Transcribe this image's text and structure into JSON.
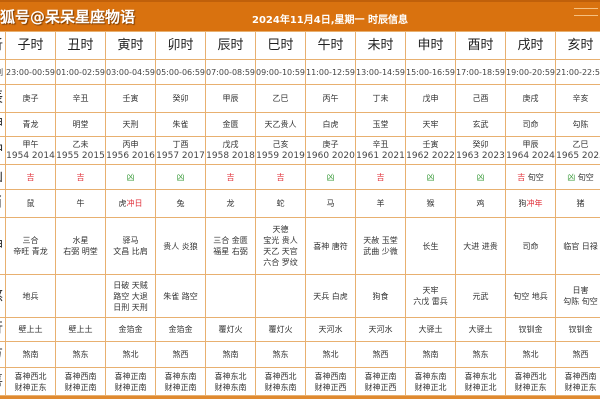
{
  "header": {
    "brand": "狐号@呆呆星座物语",
    "date_title": "2024年11月4日,星期一 时辰信息"
  },
  "colors": {
    "header_bg": "#d9720f",
    "ji": "#e0303a",
    "xiong": "#3a9a3a",
    "border": "#e8b070"
  },
  "row_labels": [
    "析",
    "刻",
    "辰",
    "神",
    "冲",
    "凶",
    "肖",
    "神",
    "煞",
    "行",
    "方",
    "喜"
  ],
  "columns": [
    {
      "name": "子时",
      "time": "23:00-00:59",
      "chen": "庚子",
      "shen": "青龙",
      "chong": [
        "甲午",
        "1954 2014"
      ],
      "luck": "吉",
      "luck_extra": "",
      "animal": "鼠",
      "animal_extra": "",
      "yi": [
        "三合",
        "帝旺 青龙"
      ],
      "sha": [
        "地兵"
      ],
      "wuxing": "壁上土",
      "fang": "煞南",
      "xi": [
        "喜神西北",
        "财神正东"
      ]
    },
    {
      "name": "丑时",
      "time": "01:00-02:59",
      "chen": "辛丑",
      "shen": "明堂",
      "chong": [
        "乙未",
        "1955 2015"
      ],
      "luck": "吉",
      "luck_extra": "",
      "animal": "牛",
      "animal_extra": "",
      "yi": [
        "水星",
        "右弼 明堂"
      ],
      "sha": [],
      "wuxing": "壁上土",
      "fang": "煞东",
      "xi": [
        "喜神西南",
        "财神正南"
      ]
    },
    {
      "name": "寅时",
      "time": "03:00-04:59",
      "chen": "壬寅",
      "shen": "天刑",
      "chong": [
        "丙申",
        "1956 2016"
      ],
      "luck": "凶",
      "luck_extra": "",
      "animal": "虎",
      "animal_extra": "冲日",
      "yi": [
        "驿马",
        "文昌 比肩"
      ],
      "sha": [
        "日破 天贼",
        "路空 大退",
        "日刑 天刑"
      ],
      "wuxing": "金箔金",
      "fang": "煞北",
      "xi": [
        "喜神正南",
        "财神正南"
      ]
    },
    {
      "name": "卯时",
      "time": "05:00-06:59",
      "chen": "癸卯",
      "shen": "朱雀",
      "chong": [
        "丁酉",
        "1957 2017"
      ],
      "luck": "凶",
      "luck_extra": "",
      "animal": "兔",
      "animal_extra": "",
      "yi": [
        "贵人 炎狼"
      ],
      "sha": [
        "朱雀 路空"
      ],
      "wuxing": "金箔金",
      "fang": "煞西",
      "xi": [
        "喜神东南",
        "财神正南"
      ]
    },
    {
      "name": "辰时",
      "time": "07:00-08:59",
      "chen": "甲辰",
      "shen": "金匮",
      "chong": [
        "戊戌",
        "1958 2018"
      ],
      "luck": "吉",
      "luck_extra": "",
      "animal": "龙",
      "animal_extra": "",
      "yi": [
        "三合 金匮",
        "福星 右弼"
      ],
      "sha": [],
      "wuxing": "覆灯火",
      "fang": "煞南",
      "xi": [
        "喜神东北",
        "财神东南"
      ]
    },
    {
      "name": "巳时",
      "time": "09:00-10:59",
      "chen": "乙巳",
      "shen": "天乙贵人",
      "chong": [
        "己亥",
        "1959 2019"
      ],
      "luck": "吉",
      "luck_extra": "",
      "animal": "蛇",
      "animal_extra": "",
      "yi": [
        "天德",
        "宝光 贵人",
        "天乙 天官",
        "六合 罗纹"
      ],
      "sha": [],
      "wuxing": "覆灯火",
      "fang": "煞东",
      "xi": [
        "喜神西北",
        "财神东南"
      ]
    },
    {
      "name": "午时",
      "time": "11:00-12:59",
      "chen": "丙午",
      "shen": "白虎",
      "chong": [
        "庚子",
        "1960 2020"
      ],
      "luck": "凶",
      "luck_extra": "",
      "animal": "马",
      "animal_extra": "",
      "yi": [
        "喜神 唐符"
      ],
      "sha": [
        "天兵 白虎"
      ],
      "wuxing": "天河水",
      "fang": "煞北",
      "xi": [
        "喜神西南",
        "财神正西"
      ]
    },
    {
      "name": "未时",
      "time": "13:00-14:59",
      "chen": "丁未",
      "shen": "玉堂",
      "chong": [
        "辛丑",
        "1961 2021"
      ],
      "luck": "吉",
      "luck_extra": "",
      "animal": "羊",
      "animal_extra": "",
      "yi": [
        "天赦 玉堂",
        "武曲 少微"
      ],
      "sha": [
        "狗食"
      ],
      "wuxing": "天河水",
      "fang": "煞西",
      "xi": [
        "喜神正南",
        "财神正西"
      ]
    },
    {
      "name": "申时",
      "time": "15:00-16:59",
      "chen": "戊申",
      "shen": "天牢",
      "chong": [
        "壬寅",
        "1962 2022"
      ],
      "luck": "凶",
      "luck_extra": "",
      "animal": "猴",
      "animal_extra": "",
      "yi": [
        "长生"
      ],
      "sha": [
        "天牢",
        "六戊 雷兵"
      ],
      "wuxing": "大驿土",
      "fang": "煞南",
      "xi": [
        "喜神东南",
        "财神正北"
      ]
    },
    {
      "name": "酉时",
      "time": "17:00-18:59",
      "chen": "己酉",
      "shen": "玄武",
      "chong": [
        "癸卯",
        "1963 2023"
      ],
      "luck": "凶",
      "luck_extra": "",
      "animal": "鸡",
      "animal_extra": "",
      "yi": [
        "大进 进贵"
      ],
      "sha": [
        "元武"
      ],
      "wuxing": "大驿土",
      "fang": "煞东",
      "xi": [
        "喜神东北",
        "财神正北"
      ]
    },
    {
      "name": "戌时",
      "time": "19:00-20:59",
      "chen": "庚戌",
      "shen": "司命",
      "chong": [
        "甲辰",
        "1964 2024"
      ],
      "luck": "吉",
      "luck_extra": "旬空",
      "animal": "狗",
      "animal_extra": "冲年",
      "yi": [
        "司命"
      ],
      "sha": [
        "旬空 地兵"
      ],
      "wuxing": "钗钏金",
      "fang": "煞北",
      "xi": [
        "喜神西北",
        "财神正东"
      ]
    },
    {
      "name": "亥时",
      "time": "21:00-22:59",
      "chen": "辛亥",
      "shen": "勾陈",
      "chong": [
        "乙巳",
        "1965 2025"
      ],
      "luck": "凶",
      "luck_extra": "旬空",
      "animal": "猪",
      "animal_extra": "",
      "yi": [
        "临官 日禄"
      ],
      "sha": [
        "日害",
        "勾陈 旬空"
      ],
      "wuxing": "钗钏金",
      "fang": "煞西",
      "xi": [
        "喜神西南",
        "财神正东"
      ]
    }
  ]
}
